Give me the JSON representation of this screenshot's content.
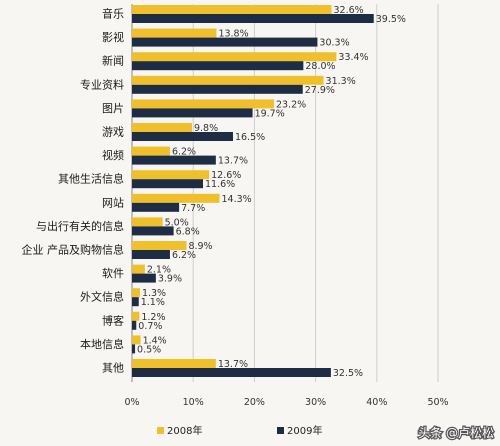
{
  "chart_data": {
    "type": "bar",
    "orientation": "horizontal",
    "categories": [
      "音乐",
      "影视",
      "新闻",
      "专业资料",
      "图片",
      "游戏",
      "视频",
      "其他生活信息",
      "网站",
      "与出行有关的信息",
      "企业 产品及购物信息",
      "软件",
      "外文信息",
      "博客",
      "本地信息",
      "其他"
    ],
    "series": [
      {
        "name": "2008年",
        "color": "#f0c02c",
        "values": [
          32.6,
          13.8,
          33.4,
          31.3,
          23.2,
          9.8,
          6.2,
          12.6,
          14.3,
          5.0,
          8.9,
          2.1,
          1.3,
          1.2,
          1.4,
          13.7
        ]
      },
      {
        "name": "2009年",
        "color": "#1e2d44",
        "values": [
          39.5,
          30.3,
          28.0,
          27.9,
          19.7,
          16.5,
          13.7,
          11.6,
          7.7,
          6.8,
          6.2,
          3.9,
          1.1,
          0.7,
          0.5,
          32.5
        ]
      }
    ],
    "xlim": [
      0,
      50
    ],
    "xticks": [
      0,
      10,
      20,
      30,
      40,
      50
    ],
    "xtick_labels": [
      "0%",
      "10%",
      "20%",
      "30%",
      "40%",
      "50%"
    ],
    "grid": true,
    "legend": "bottom"
  },
  "watermark": "头条 @卢松松"
}
